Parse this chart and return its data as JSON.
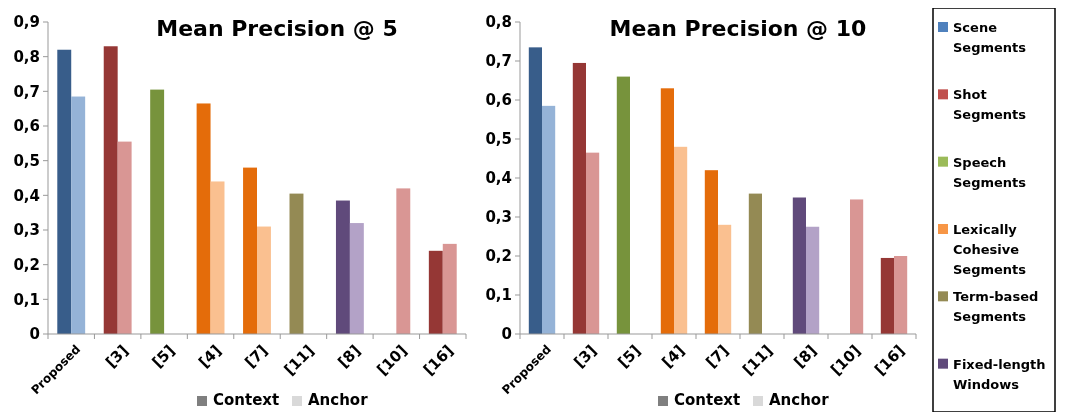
{
  "chart_data": [
    {
      "type": "bar",
      "title": "Mean Precision @ 5",
      "categories": [
        "Proposed",
        "[3]",
        "[5]",
        "[4]",
        "[7]",
        "[11]",
        "[8]",
        "[10]",
        "[16]"
      ],
      "series": [
        {
          "colors": [
            "#385d8a",
            "#953735",
            "#77933c",
            "#e46c0a",
            "#e46c0a",
            "#948a54",
            "#604a7b",
            null,
            "#953735"
          ],
          "values": [
            0.82,
            0.83,
            0.705,
            0.665,
            0.48,
            0.405,
            0.385,
            null,
            0.24
          ]
        },
        {
          "colors": [
            "#95b3d7",
            "#d99694",
            null,
            "#fac090",
            "#fac090",
            null,
            "#b3a2c7",
            "#d99694",
            "#d99694"
          ],
          "values": [
            0.685,
            0.555,
            null,
            0.44,
            0.31,
            null,
            0.32,
            0.42,
            0.26
          ]
        }
      ],
      "ylim": [
        0,
        0.9
      ],
      "yticks": [
        0,
        {
          "value": 0.1,
          "label": "0,1"
        },
        {
          "value": 0.2,
          "label": "0,2"
        },
        {
          "value": 0.3,
          "label": "0,3"
        },
        {
          "value": 0.4,
          "label": "0,4"
        },
        {
          "value": 0.5,
          "label": "0,5"
        },
        {
          "value": 0.6,
          "label": "0,6"
        },
        {
          "value": 0.7,
          "label": "0,7"
        },
        {
          "value": 0.8,
          "label": "0,8"
        },
        {
          "value": 0.9,
          "label": "0,9"
        }
      ]
    },
    {
      "type": "other",
      "categories": [
        "Context",
        "Anchor"
      ],
      "colors": [
        "#7f7f7f",
        "#d9d9d9"
      ]
    },
    {
      "type": "bar",
      "title": "Mean Precision @ 10",
      "categories": [
        "Proposed",
        "[3]",
        "[5]",
        "[4]",
        "[7]",
        "[11]",
        "[8]",
        "[10]",
        "[16]"
      ],
      "series": [
        {
          "colors": [
            "#385d8a",
            "#953735",
            "#77933c",
            "#e46c0a",
            "#e46c0a",
            "#948a54",
            "#604a7b",
            null,
            "#953735"
          ],
          "values": [
            0.735,
            0.695,
            0.66,
            0.63,
            0.42,
            0.36,
            0.35,
            null,
            0.195
          ]
        },
        {
          "colors": [
            "#95b3d7",
            "#d99694",
            null,
            "#fac090",
            "#fac090",
            null,
            "#b3a2c7",
            "#d99694",
            "#d99694"
          ],
          "values": [
            0.585,
            0.465,
            null,
            0.48,
            0.28,
            null,
            0.275,
            0.345,
            0.2
          ]
        }
      ],
      "ylim": [
        0,
        0.8
      ],
      "yticks": [
        0,
        {
          "value": 0.1,
          "label": "0,1"
        },
        {
          "value": 0.2,
          "label": "0,2"
        },
        {
          "value": 0.3,
          "label": "0,3"
        },
        {
          "value": 0.4,
          "label": "0,4"
        },
        {
          "value": 0.5,
          "label": "0,5"
        },
        {
          "value": 0.6,
          "label": "0,6"
        },
        {
          "value": 0.7,
          "label": "0,7"
        },
        {
          "value": 0.8,
          "label": "0,8"
        }
      ]
    },
    {
      "type": "other",
      "categories": [
        "Context",
        "Anchor"
      ],
      "colors": [
        "#7f7f7f",
        "#d9d9d9"
      ]
    },
    {
      "type": "other",
      "categories": [
        "Scene Segments",
        "Shot Segments",
        "Speech Segments",
        "Lexically Cohesive Segments",
        "Term-based Segments",
        "Fixed-length Windows"
      ],
      "colors": [
        "#4f81bd",
        "#c0504d",
        "#9bbb59",
        "#f79646",
        "#948a54",
        "#604a7b"
      ]
    }
  ]
}
